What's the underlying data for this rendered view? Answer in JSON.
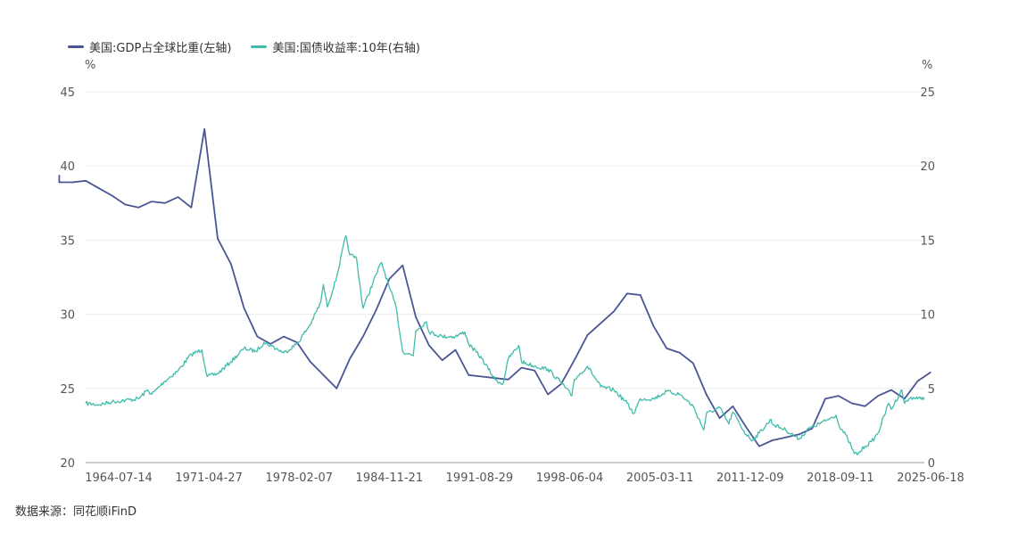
{
  "chart_data": {
    "type": "line",
    "legend_position": "top-left",
    "grid": true,
    "left_axis": {
      "unit": "%",
      "ylim": [
        20,
        45
      ],
      "ticks": [
        20,
        25,
        30,
        35,
        40,
        45
      ]
    },
    "right_axis": {
      "unit": "%",
      "ylim": [
        0,
        25
      ],
      "ticks": [
        0,
        5,
        10,
        15,
        20,
        25
      ]
    },
    "x_tick_labels": [
      "1964-07-14",
      "1971-04-27",
      "1978-02-07",
      "1984-11-21",
      "1991-08-29",
      "1998-06-04",
      "2005-03-11",
      "2011-12-09",
      "2018-09-11",
      "2025-06-18"
    ],
    "x_range": [
      1962.0,
      2025.5
    ],
    "series": [
      {
        "name": "美国:GDP占全球比重(左轴)",
        "axis": "left",
        "color": "#4a5694",
        "points": [
          [
            1960,
            39.4
          ],
          [
            1960,
            38.9
          ],
          [
            1961,
            38.9
          ],
          [
            1962,
            39.0
          ],
          [
            1963,
            38.5
          ],
          [
            1964,
            38.0
          ],
          [
            1965,
            37.4
          ],
          [
            1966,
            37.2
          ],
          [
            1967,
            37.6
          ],
          [
            1968,
            37.5
          ],
          [
            1969,
            37.9
          ],
          [
            1970,
            37.2
          ],
          [
            1971,
            42.5
          ],
          [
            1972,
            35.1
          ],
          [
            1973,
            33.4
          ],
          [
            1974,
            30.4
          ],
          [
            1975,
            28.5
          ],
          [
            1976,
            28.0
          ],
          [
            1977,
            28.5
          ],
          [
            1978,
            28.1
          ],
          [
            1979,
            26.8
          ],
          [
            1980,
            25.9
          ],
          [
            1981,
            25.0
          ],
          [
            1982,
            27.0
          ],
          [
            1983,
            28.5
          ],
          [
            1984,
            30.3
          ],
          [
            1985,
            32.4
          ],
          [
            1986,
            33.3
          ],
          [
            1987,
            29.8
          ],
          [
            1988,
            27.9
          ],
          [
            1989,
            26.9
          ],
          [
            1990,
            27.6
          ],
          [
            1991,
            25.9
          ],
          [
            1992,
            25.8
          ],
          [
            1993,
            25.7
          ],
          [
            1994,
            25.6
          ],
          [
            1995,
            26.4
          ],
          [
            1996,
            26.2
          ],
          [
            1997,
            24.6
          ],
          [
            1998,
            25.3
          ],
          [
            1999,
            26.9
          ],
          [
            2000,
            28.6
          ],
          [
            2001,
            29.4
          ],
          [
            2002,
            30.2
          ],
          [
            2003,
            31.4
          ],
          [
            2004,
            31.3
          ],
          [
            2005,
            29.2
          ],
          [
            2006,
            27.7
          ],
          [
            2007,
            27.4
          ],
          [
            2008,
            26.7
          ],
          [
            2009,
            24.6
          ],
          [
            2010,
            23.0
          ],
          [
            2011,
            23.8
          ],
          [
            2012,
            22.4
          ],
          [
            2013,
            21.1
          ],
          [
            2014,
            21.5
          ],
          [
            2015,
            21.7
          ],
          [
            2016,
            21.9
          ],
          [
            2017,
            22.3
          ],
          [
            2018,
            24.3
          ],
          [
            2019,
            24.5
          ],
          [
            2020,
            24.0
          ],
          [
            2021,
            23.8
          ],
          [
            2022,
            24.5
          ],
          [
            2023,
            24.9
          ],
          [
            2024,
            24.3
          ],
          [
            2025,
            25.5
          ],
          [
            2026,
            26.1
          ]
        ]
      },
      {
        "name": "美国:国债收益率:10年(右轴)",
        "axis": "right",
        "color": "#3fbcaa",
        "points": [
          [
            1962.0,
            4.0
          ],
          [
            1963.0,
            3.9
          ],
          [
            1964.0,
            4.1
          ],
          [
            1965.0,
            4.2
          ],
          [
            1966.0,
            4.3
          ],
          [
            1966.7,
            4.9
          ],
          [
            1967.0,
            4.6
          ],
          [
            1968.0,
            5.5
          ],
          [
            1969.0,
            6.2
          ],
          [
            1970.0,
            7.3
          ],
          [
            1970.8,
            7.6
          ],
          [
            1971.2,
            5.8
          ],
          [
            1972.0,
            6.0
          ],
          [
            1973.0,
            6.8
          ],
          [
            1974.0,
            7.7
          ],
          [
            1974.9,
            7.5
          ],
          [
            1975.5,
            8.1
          ],
          [
            1976.0,
            7.9
          ],
          [
            1977.0,
            7.4
          ],
          [
            1978.0,
            8.0
          ],
          [
            1979.0,
            9.3
          ],
          [
            1979.8,
            10.8
          ],
          [
            1980.0,
            12.0
          ],
          [
            1980.3,
            10.5
          ],
          [
            1981.0,
            12.5
          ],
          [
            1981.7,
            15.3
          ],
          [
            1982.0,
            14.0
          ],
          [
            1982.5,
            13.8
          ],
          [
            1983.0,
            10.4
          ],
          [
            1984.0,
            12.7
          ],
          [
            1984.4,
            13.5
          ],
          [
            1985.0,
            11.8
          ],
          [
            1985.5,
            10.5
          ],
          [
            1986.0,
            7.5
          ],
          [
            1986.8,
            7.2
          ],
          [
            1987.0,
            8.9
          ],
          [
            1987.8,
            9.5
          ],
          [
            1988.0,
            8.8
          ],
          [
            1989.0,
            8.5
          ],
          [
            1990.0,
            8.5
          ],
          [
            1990.7,
            8.8
          ],
          [
            1991.0,
            8.0
          ],
          [
            1992.0,
            7.0
          ],
          [
            1993.0,
            5.6
          ],
          [
            1993.6,
            5.3
          ],
          [
            1994.0,
            7.0
          ],
          [
            1994.8,
            7.9
          ],
          [
            1995.0,
            6.8
          ],
          [
            1996.0,
            6.5
          ],
          [
            1997.0,
            6.3
          ],
          [
            1998.0,
            5.4
          ],
          [
            1998.8,
            4.5
          ],
          [
            1999.0,
            5.6
          ],
          [
            2000.0,
            6.5
          ],
          [
            2001.0,
            5.1
          ],
          [
            2002.0,
            4.9
          ],
          [
            2003.0,
            4.0
          ],
          [
            2003.5,
            3.3
          ],
          [
            2004.0,
            4.3
          ],
          [
            2005.0,
            4.3
          ],
          [
            2006.0,
            4.8
          ],
          [
            2007.0,
            4.6
          ],
          [
            2008.0,
            3.8
          ],
          [
            2008.8,
            2.2
          ],
          [
            2009.0,
            3.3
          ],
          [
            2010.0,
            3.7
          ],
          [
            2010.7,
            2.6
          ],
          [
            2011.0,
            3.4
          ],
          [
            2012.0,
            1.9
          ],
          [
            2012.5,
            1.5
          ],
          [
            2013.0,
            2.0
          ],
          [
            2013.9,
            2.9
          ],
          [
            2014.0,
            2.6
          ],
          [
            2015.0,
            2.2
          ],
          [
            2016.0,
            1.6
          ],
          [
            2016.9,
            2.4
          ],
          [
            2017.0,
            2.4
          ],
          [
            2018.0,
            2.8
          ],
          [
            2018.8,
            3.2
          ],
          [
            2019.0,
            2.6
          ],
          [
            2019.7,
            1.6
          ],
          [
            2020.2,
            0.6
          ],
          [
            2020.5,
            0.6
          ],
          [
            2021.0,
            1.1
          ],
          [
            2021.5,
            1.4
          ],
          [
            2022.0,
            2.0
          ],
          [
            2022.8,
            4.0
          ],
          [
            2023.0,
            3.6
          ],
          [
            2023.8,
            4.9
          ],
          [
            2024.0,
            4.0
          ],
          [
            2024.5,
            4.4
          ],
          [
            2025.0,
            4.3
          ],
          [
            2025.5,
            4.4
          ]
        ]
      }
    ]
  },
  "source_text": "数据来源：同花顺iFinD"
}
